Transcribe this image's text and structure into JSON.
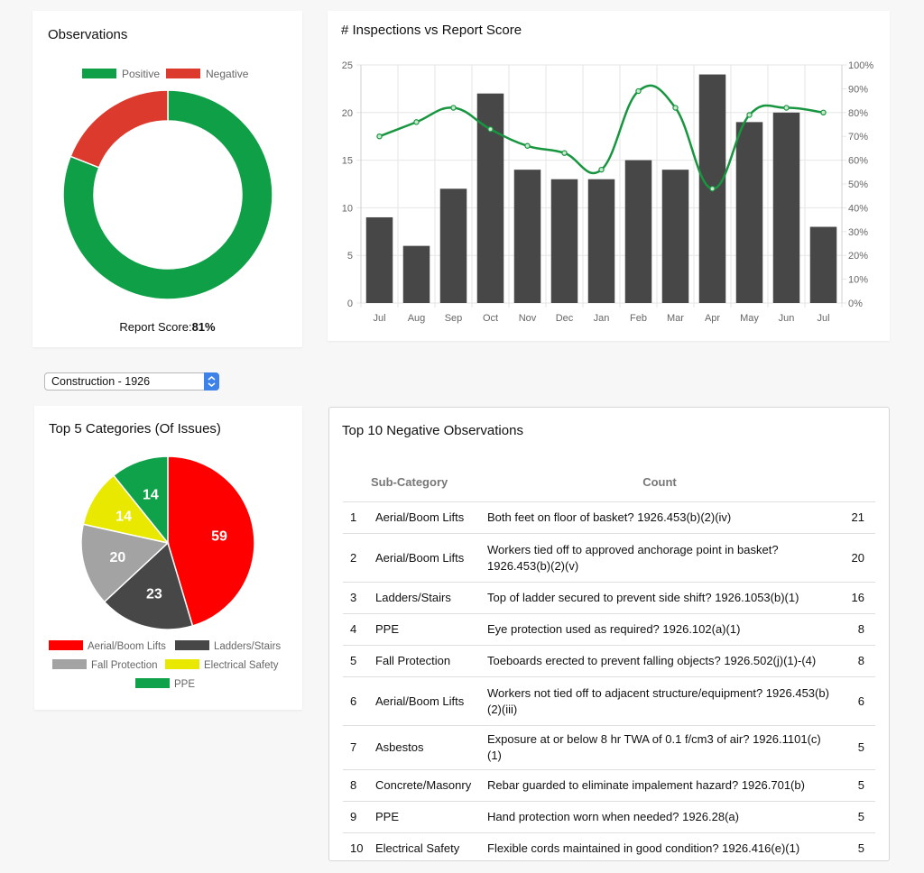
{
  "observations": {
    "title": "Observations",
    "legend": [
      {
        "label": "Positive",
        "color": "#0e9f47"
      },
      {
        "label": "Negative",
        "color": "#db3a2c"
      }
    ],
    "score_label": "Report Score:",
    "score_value": "81%"
  },
  "combo": {
    "title": "# Inspections vs Report Score"
  },
  "site_select": {
    "value": "Construction - 1926"
  },
  "categories_panel": {
    "title": "Top 5 Categories (Of Issues)"
  },
  "negatives": {
    "title": "Top 10 Negative Observations",
    "headers": [
      "",
      "Sub-Category",
      "Count",
      ""
    ],
    "rows": [
      {
        "n": "1",
        "cat": "Aerial/Boom Lifts",
        "desc": "Both feet on floor of basket? 1926.453(b)(2)(iv)",
        "count": "21"
      },
      {
        "n": "2",
        "cat": "Aerial/Boom Lifts",
        "desc": "Workers tied off to approved anchorage point in basket? 1926.453(b)(2)(v)",
        "count": "20"
      },
      {
        "n": "3",
        "cat": "Ladders/Stairs",
        "desc": "Top of ladder secured to prevent side shift? 1926.1053(b)(1)",
        "count": "16"
      },
      {
        "n": "4",
        "cat": "PPE",
        "desc": "Eye protection used as required? 1926.102(a)(1)",
        "count": "8"
      },
      {
        "n": "5",
        "cat": "Fall Protection",
        "desc": "Toeboards erected to prevent falling objects? 1926.502(j)(1)-(4)",
        "count": "8"
      },
      {
        "n": "6",
        "cat": "Aerial/Boom Lifts",
        "desc": "Workers not tied off to adjacent structure/equipment? 1926.453(b)(2)(iii)",
        "count": "6"
      },
      {
        "n": "7",
        "cat": "Asbestos",
        "desc": "Exposure at or below 8 hr TWA of 0.1 f/cm3 of air? 1926.1101(c)(1)",
        "count": "5"
      },
      {
        "n": "8",
        "cat": "Concrete/Masonry",
        "desc": "Rebar guarded to eliminate impalement hazard? 1926.701(b)",
        "count": "5"
      },
      {
        "n": "9",
        "cat": "PPE",
        "desc": "Hand protection worn when needed? 1926.28(a)",
        "count": "5"
      },
      {
        "n": "10",
        "cat": "Electrical Safety",
        "desc": "Flexible cords maintained in good condition? 1926.416(e)(1)",
        "count": "5"
      }
    ]
  },
  "chart_data": [
    {
      "type": "pie",
      "variant": "doughnut",
      "title": "Observations",
      "labels": [
        "Positive",
        "Negative"
      ],
      "values": [
        81,
        19
      ],
      "colors": [
        "#0e9f47",
        "#db3a2c"
      ],
      "legend_position": "top"
    },
    {
      "type": "bar",
      "title": "# Inspections vs Report Score",
      "categories": [
        "Jul",
        "Aug",
        "Sep",
        "Oct",
        "Nov",
        "Dec",
        "Jan",
        "Feb",
        "Mar",
        "Apr",
        "May",
        "Jun",
        "Jul"
      ],
      "series": [
        {
          "type": "bar",
          "axis": "left",
          "color": "#474747",
          "values": [
            9,
            6,
            12,
            22,
            14,
            13,
            13,
            15,
            14,
            24,
            19,
            20,
            8
          ]
        },
        {
          "type": "line",
          "axis": "right",
          "color": "#17963f",
          "values": [
            70,
            76,
            82,
            73,
            66,
            63,
            56,
            89,
            82,
            48,
            79,
            82,
            80
          ]
        }
      ],
      "ylim": [
        0,
        25
      ],
      "yticks": [
        0,
        5,
        10,
        15,
        20,
        25
      ],
      "y2lim": [
        0,
        100
      ],
      "y2ticks": [
        "0%",
        "10%",
        "20%",
        "30%",
        "40%",
        "50%",
        "60%",
        "70%",
        "80%",
        "90%",
        "100%"
      ],
      "grid": true
    },
    {
      "type": "pie",
      "title": "Top 5 Categories (Of Issues)",
      "labels": [
        "Aerial/Boom Lifts",
        "Ladders/Stairs",
        "Fall Protection",
        "Electrical Safety",
        "PPE"
      ],
      "values": [
        59,
        23,
        20,
        14,
        14
      ],
      "colors": [
        "#ff0000",
        "#474747",
        "#a3a3a3",
        "#e8e800",
        "#10a24a"
      ],
      "legend_position": "bottom"
    }
  ]
}
